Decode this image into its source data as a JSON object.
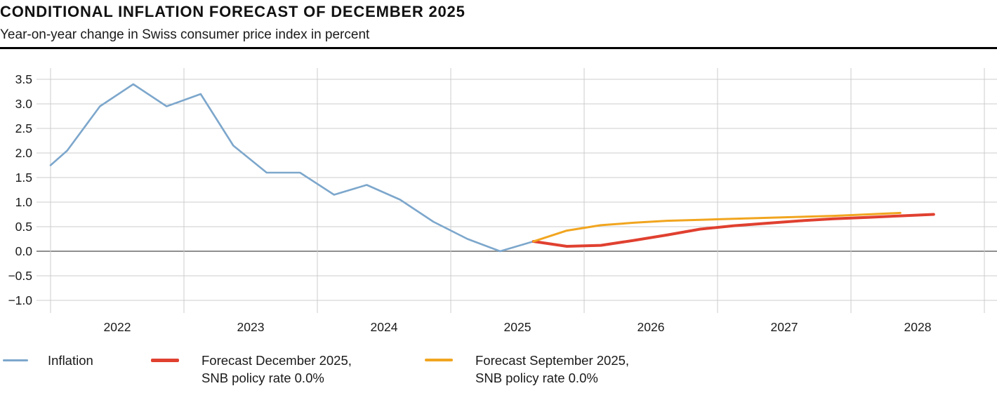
{
  "header": {
    "title": "CONDITIONAL INFLATION FORECAST OF DECEMBER 2025",
    "subtitle": "Year-on-year change in Swiss consumer price index in percent"
  },
  "chart_data": {
    "type": "line",
    "title": "CONDITIONAL INFLATION FORECAST OF DECEMBER 2025",
    "subtitle": "Year-on-year change in Swiss consumer price index in percent",
    "unit": "percent, year-on-year change in Swiss CPI",
    "x_axis": {
      "min": 2022,
      "max": 2029,
      "tick_years": [
        2022,
        2023,
        2024,
        2025,
        2026,
        2027,
        2028
      ],
      "gridlines": "at each year boundary"
    },
    "y_axis": {
      "min": -1.26,
      "max": 3.73,
      "ticks": [
        3.5,
        3.0,
        2.5,
        2.0,
        1.5,
        1.0,
        0.5,
        0.0,
        -0.5,
        -1.0
      ],
      "zero_line_emphasized": true
    },
    "legend_position": "bottom",
    "series": [
      {
        "name": "Inflation",
        "color": "#7da7cc",
        "frequency": "quarterly",
        "x": [
          2022.0,
          2022.125,
          2022.37,
          2022.62,
          2022.87,
          2023.125,
          2023.37,
          2023.62,
          2023.87,
          2024.125,
          2024.37,
          2024.62,
          2024.87,
          2025.125,
          2025.37,
          2025.62
        ],
        "values": [
          1.75,
          2.05,
          2.95,
          3.4,
          2.95,
          3.2,
          2.15,
          1.6,
          1.6,
          1.15,
          1.35,
          1.05,
          0.6,
          0.25,
          0.0,
          0.2
        ]
      },
      {
        "name": "Forecast December 2025, SNB policy rate 0.0%",
        "color": "#e04030",
        "frequency": "quarterly",
        "x": [
          2025.62,
          2025.87,
          2026.125,
          2026.37,
          2026.62,
          2026.87,
          2027.125,
          2027.37,
          2027.62,
          2027.87,
          2028.125,
          2028.37,
          2028.62
        ],
        "values": [
          0.2,
          0.1,
          0.12,
          0.22,
          0.33,
          0.45,
          0.52,
          0.57,
          0.62,
          0.66,
          0.69,
          0.72,
          0.75
        ]
      },
      {
        "name": "Forecast September 2025, SNB policy rate 0.0%",
        "color": "#f1a51f",
        "frequency": "quarterly",
        "x": [
          2025.62,
          2025.87,
          2026.125,
          2026.37,
          2026.62,
          2026.87,
          2027.125,
          2027.37,
          2027.62,
          2027.87,
          2028.125,
          2028.37
        ],
        "values": [
          0.2,
          0.42,
          0.53,
          0.58,
          0.62,
          0.64,
          0.66,
          0.68,
          0.7,
          0.72,
          0.75,
          0.78
        ]
      }
    ]
  },
  "legend": {
    "items": [
      {
        "color": "#7da7cc",
        "line1": "Inflation",
        "line2": ""
      },
      {
        "color": "#e04030",
        "line1": "Forecast December 2025,",
        "line2": "SNB policy rate 0.0%"
      },
      {
        "color": "#f1a51f",
        "line1": "Forecast September 2025,",
        "line2": "SNB policy rate 0.0%"
      }
    ]
  },
  "colors": {
    "grid": "#cccccc",
    "zero_line": "#8f8f8f",
    "axis_text": "#1a1a1a",
    "title_text": "#111111"
  }
}
